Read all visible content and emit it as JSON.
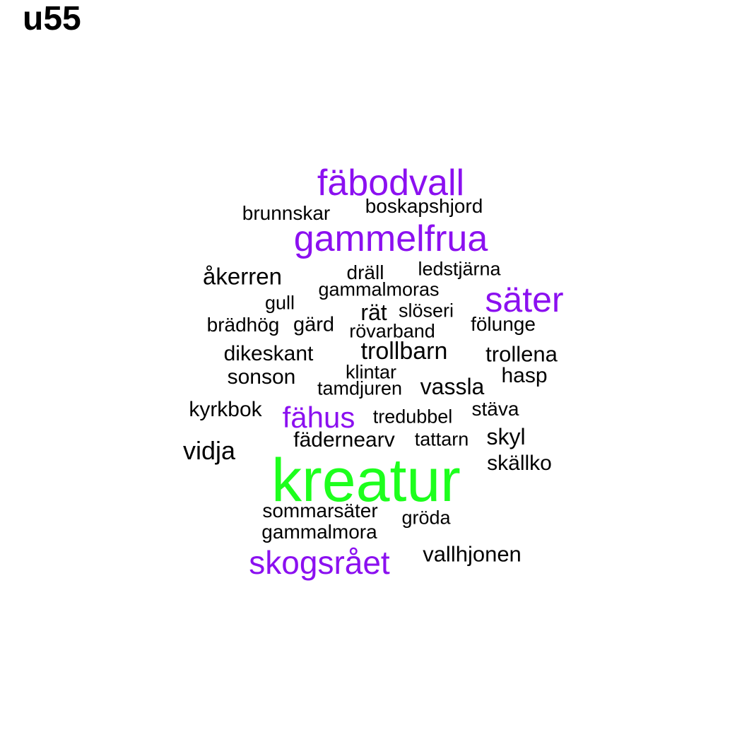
{
  "title": "u55",
  "colors": {
    "top": "#1dff1d",
    "high": "#8b10f0",
    "normal": "#000000"
  },
  "words": [
    {
      "text": "kreatur",
      "tier": "top"
    },
    {
      "text": "fäbodvall",
      "tier": "high"
    },
    {
      "text": "gammelfrua",
      "tier": "high"
    },
    {
      "text": "säter",
      "tier": "high"
    },
    {
      "text": "skogsrået",
      "tier": "high"
    },
    {
      "text": "fähus",
      "tier": "high"
    },
    {
      "text": "brunnskar",
      "tier": "normal"
    },
    {
      "text": "boskapshjord",
      "tier": "normal"
    },
    {
      "text": "åkerren",
      "tier": "normal"
    },
    {
      "text": "dräll",
      "tier": "normal"
    },
    {
      "text": "ledstjärna",
      "tier": "normal"
    },
    {
      "text": "gammalmoras",
      "tier": "normal"
    },
    {
      "text": "gull",
      "tier": "normal"
    },
    {
      "text": "rät",
      "tier": "normal"
    },
    {
      "text": "slöseri",
      "tier": "normal"
    },
    {
      "text": "brädhög",
      "tier": "normal"
    },
    {
      "text": "gärd",
      "tier": "normal"
    },
    {
      "text": "rövarband",
      "tier": "normal"
    },
    {
      "text": "fölunge",
      "tier": "normal"
    },
    {
      "text": "dikeskant",
      "tier": "normal"
    },
    {
      "text": "trollbarn",
      "tier": "normal"
    },
    {
      "text": "trollena",
      "tier": "normal"
    },
    {
      "text": "sonson",
      "tier": "normal"
    },
    {
      "text": "klintar",
      "tier": "normal"
    },
    {
      "text": "hasp",
      "tier": "normal"
    },
    {
      "text": "tamdjuren",
      "tier": "normal"
    },
    {
      "text": "vassla",
      "tier": "normal"
    },
    {
      "text": "kyrkbok",
      "tier": "normal"
    },
    {
      "text": "tredubbel",
      "tier": "normal"
    },
    {
      "text": "stäva",
      "tier": "normal"
    },
    {
      "text": "fädernearv",
      "tier": "normal"
    },
    {
      "text": "tattarn",
      "tier": "normal"
    },
    {
      "text": "skyl",
      "tier": "normal"
    },
    {
      "text": "vidja",
      "tier": "normal"
    },
    {
      "text": "skällko",
      "tier": "normal"
    },
    {
      "text": "sommarsäter",
      "tier": "normal"
    },
    {
      "text": "gröda",
      "tier": "normal"
    },
    {
      "text": "gammalmora",
      "tier": "normal"
    },
    {
      "text": "vallhjonen",
      "tier": "normal"
    }
  ]
}
